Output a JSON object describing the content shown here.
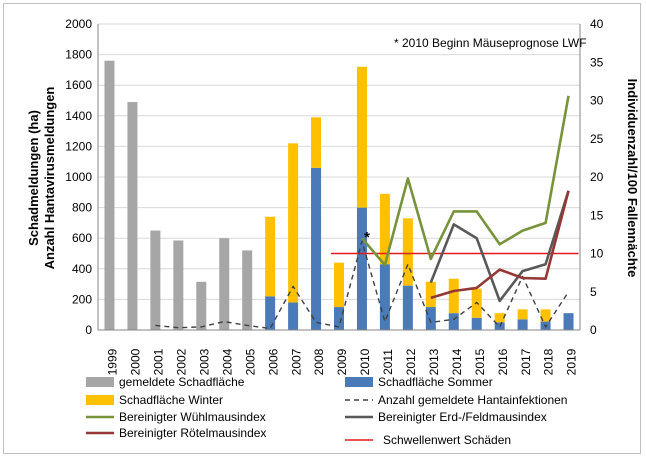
{
  "chart_data": {
    "type": "bar+line",
    "note": "* 2010 Beginn Mäuseprognose LWF",
    "marker": "*",
    "categories": [
      "1999",
      "2000",
      "2001",
      "2002",
      "2003",
      "2004",
      "2005",
      "2006",
      "2007",
      "2008",
      "2009",
      "2010",
      "2011",
      "2012",
      "2013",
      "2014",
      "2015",
      "2016",
      "2017",
      "2018",
      "2019"
    ],
    "y_left": {
      "label_line1": "Schadmeldungen (ha)",
      "label_line2": "Anzahl Hantavirusmeldungen",
      "ylim": [
        0,
        2000
      ],
      "ticks": [
        "0",
        "200",
        "400",
        "600",
        "800",
        "1000",
        "1200",
        "1400",
        "1600",
        "1800",
        "2000"
      ]
    },
    "y_right": {
      "label": "Individuenzahl/100 Fallennächte",
      "ylim": [
        0,
        40
      ],
      "ticks": [
        "0",
        "5",
        "10",
        "15",
        "20",
        "25",
        "30",
        "35",
        "40"
      ]
    },
    "series": [
      {
        "name": "gemeldete Schadfläche",
        "kind": "bar",
        "axis": "left",
        "color": "#a6a6a6",
        "values": [
          1760,
          1490,
          650,
          585,
          315,
          600,
          520,
          null,
          null,
          null,
          null,
          null,
          null,
          null,
          null,
          null,
          null,
          null,
          null,
          null,
          null
        ]
      },
      {
        "name": "Schadfläche Sommer",
        "kind": "bar",
        "axis": "left",
        "color": "#4a7ab7",
        "values": [
          null,
          null,
          null,
          null,
          null,
          null,
          null,
          220,
          180,
          1060,
          150,
          800,
          430,
          290,
          150,
          110,
          80,
          50,
          70,
          55,
          110
        ]
      },
      {
        "name": "Schadfläche Winter",
        "kind": "bar",
        "axis": "left",
        "stacked_on": "Schadfläche Sommer",
        "color": "#ffc000",
        "values": [
          null,
          null,
          null,
          null,
          null,
          null,
          null,
          520,
          1040,
          330,
          290,
          920,
          460,
          440,
          165,
          225,
          190,
          60,
          65,
          80,
          null
        ]
      },
      {
        "name": "Anzahl gemeldete Hantainfektionen",
        "kind": "line",
        "style": "dashed",
        "axis": "left",
        "color": "#404040",
        "values": [
          null,
          null,
          30,
          15,
          20,
          55,
          30,
          10,
          285,
          50,
          20,
          580,
          55,
          430,
          50,
          70,
          180,
          20,
          350,
          20,
          250
        ]
      },
      {
        "name": "Bereinigter Wühlmausindex",
        "kind": "line",
        "axis": "right",
        "color": "#77933c",
        "values": [
          null,
          null,
          null,
          null,
          null,
          null,
          null,
          null,
          null,
          null,
          null,
          12,
          8.5,
          19.8,
          9.3,
          15.5,
          15.5,
          11.2,
          13,
          14,
          30.6
        ]
      },
      {
        "name": "Bereinigter Erd-/Feldmausindex",
        "kind": "line",
        "axis": "right",
        "color": "#595959",
        "values": [
          null,
          null,
          null,
          null,
          null,
          null,
          null,
          null,
          null,
          null,
          null,
          null,
          null,
          null,
          6.2,
          13.8,
          12,
          3.8,
          7.7,
          8.6,
          18.2
        ]
      },
      {
        "name": "Bereinigter Rötelmausindex",
        "kind": "line",
        "axis": "right",
        "color": "#953735",
        "values": [
          null,
          null,
          null,
          null,
          null,
          null,
          null,
          null,
          null,
          null,
          null,
          null,
          null,
          null,
          4.2,
          5.1,
          5.5,
          7.9,
          6.8,
          6.7,
          18.2
        ]
      },
      {
        "name": "Schwellenwert Schäden",
        "kind": "hline",
        "axis": "right",
        "color": "#e41a1c",
        "value": 10,
        "from": "2009",
        "to": "2019"
      }
    ],
    "legend": [
      [
        "gemeldete Schadfläche",
        "Schadfläche Sommer"
      ],
      [
        "Schadfläche Winter",
        "Anzahl gemeldete Hantainfektionen"
      ],
      [
        "Bereinigter Wühlmausindex",
        "Bereinigter Erd-/Feldmausindex"
      ],
      [
        "Bereinigter Rötelmausindex",
        "Schwellenwert Schäden"
      ]
    ]
  }
}
